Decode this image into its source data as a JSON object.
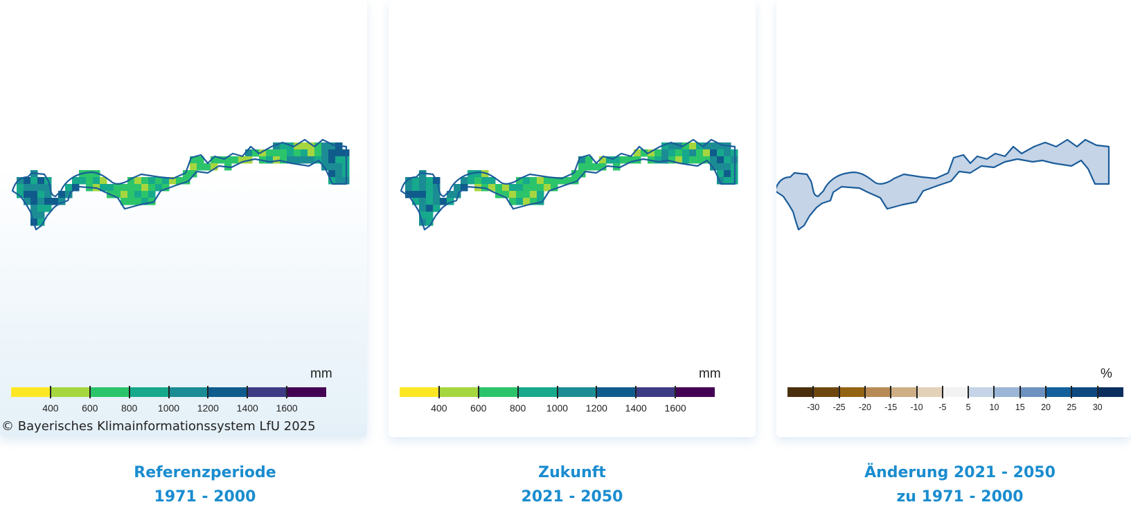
{
  "colors": {
    "caption": "#1a8ccf",
    "outline": "#1a5c9a",
    "precip_classes": [
      "#fde725",
      "#a6d63f",
      "#2cc46a",
      "#17a98c",
      "#1b8c94",
      "#0f5c8c",
      "#3e3b85",
      "#440154"
    ],
    "change_classes": [
      "#4a2f0e",
      "#6e470f",
      "#936314",
      "#b88a56",
      "#cdae85",
      "#e3d1b9",
      "#f2f2f2",
      "#c5d4e6",
      "#9cb6d6",
      "#6d92bf",
      "#14609c",
      "#0e4a80",
      "#0a2f5e"
    ],
    "change_fill": "#c5d4e6"
  },
  "maps": [
    {
      "unit": "mm",
      "tick_labels": [
        "400",
        "600",
        "800",
        "1000",
        "1200",
        "1400",
        "1600"
      ],
      "copyright": "© Bayerisches Klimainformationssystem LfU 2025",
      "caption": [
        "Referenzperiode",
        "1971 - 2000"
      ]
    },
    {
      "unit": "mm",
      "tick_labels": [
        "400",
        "600",
        "800",
        "1000",
        "1200",
        "1400",
        "1600"
      ],
      "caption": [
        "Zukunft",
        "2021 - 2050"
      ]
    },
    {
      "unit": "%",
      "tick_labels": [
        "-30",
        "-25",
        "-20",
        "-15",
        "-10",
        "-5",
        "5",
        "10",
        "15",
        "20",
        "25",
        "30"
      ],
      "caption": [
        "Änderung 2021 - 2050",
        "zu 1971 - 2000"
      ]
    }
  ]
}
